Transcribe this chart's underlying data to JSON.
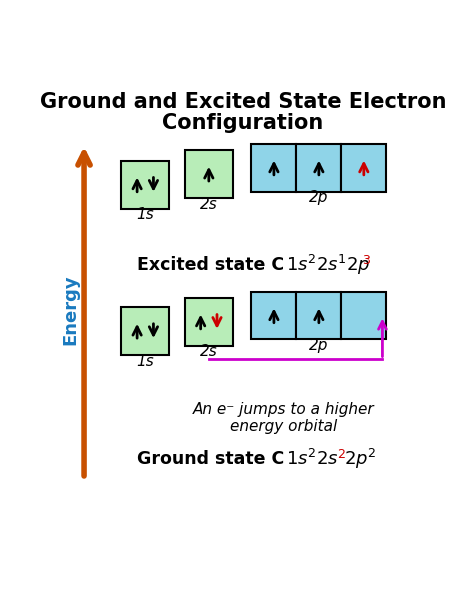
{
  "title_line1": "Ground and Excited State Electron",
  "title_line2": "Configuration",
  "title_fontsize": 15,
  "bg_color": "#ffffff",
  "green_box_color": "#b8edb8",
  "blue_box_color": "#8fd4e8",
  "box_edge_color": "#000000",
  "energy_arrow_color": "#c85000",
  "energy_label_color": "#1a7abf",
  "magenta_color": "#cc00cc",
  "red_color": "#cc0000",
  "black_color": "#000000",
  "excited_label": "Excited state C",
  "ground_label": "Ground state C",
  "annotation": "An e⁻ jumps to a higher\nenergy orbital"
}
